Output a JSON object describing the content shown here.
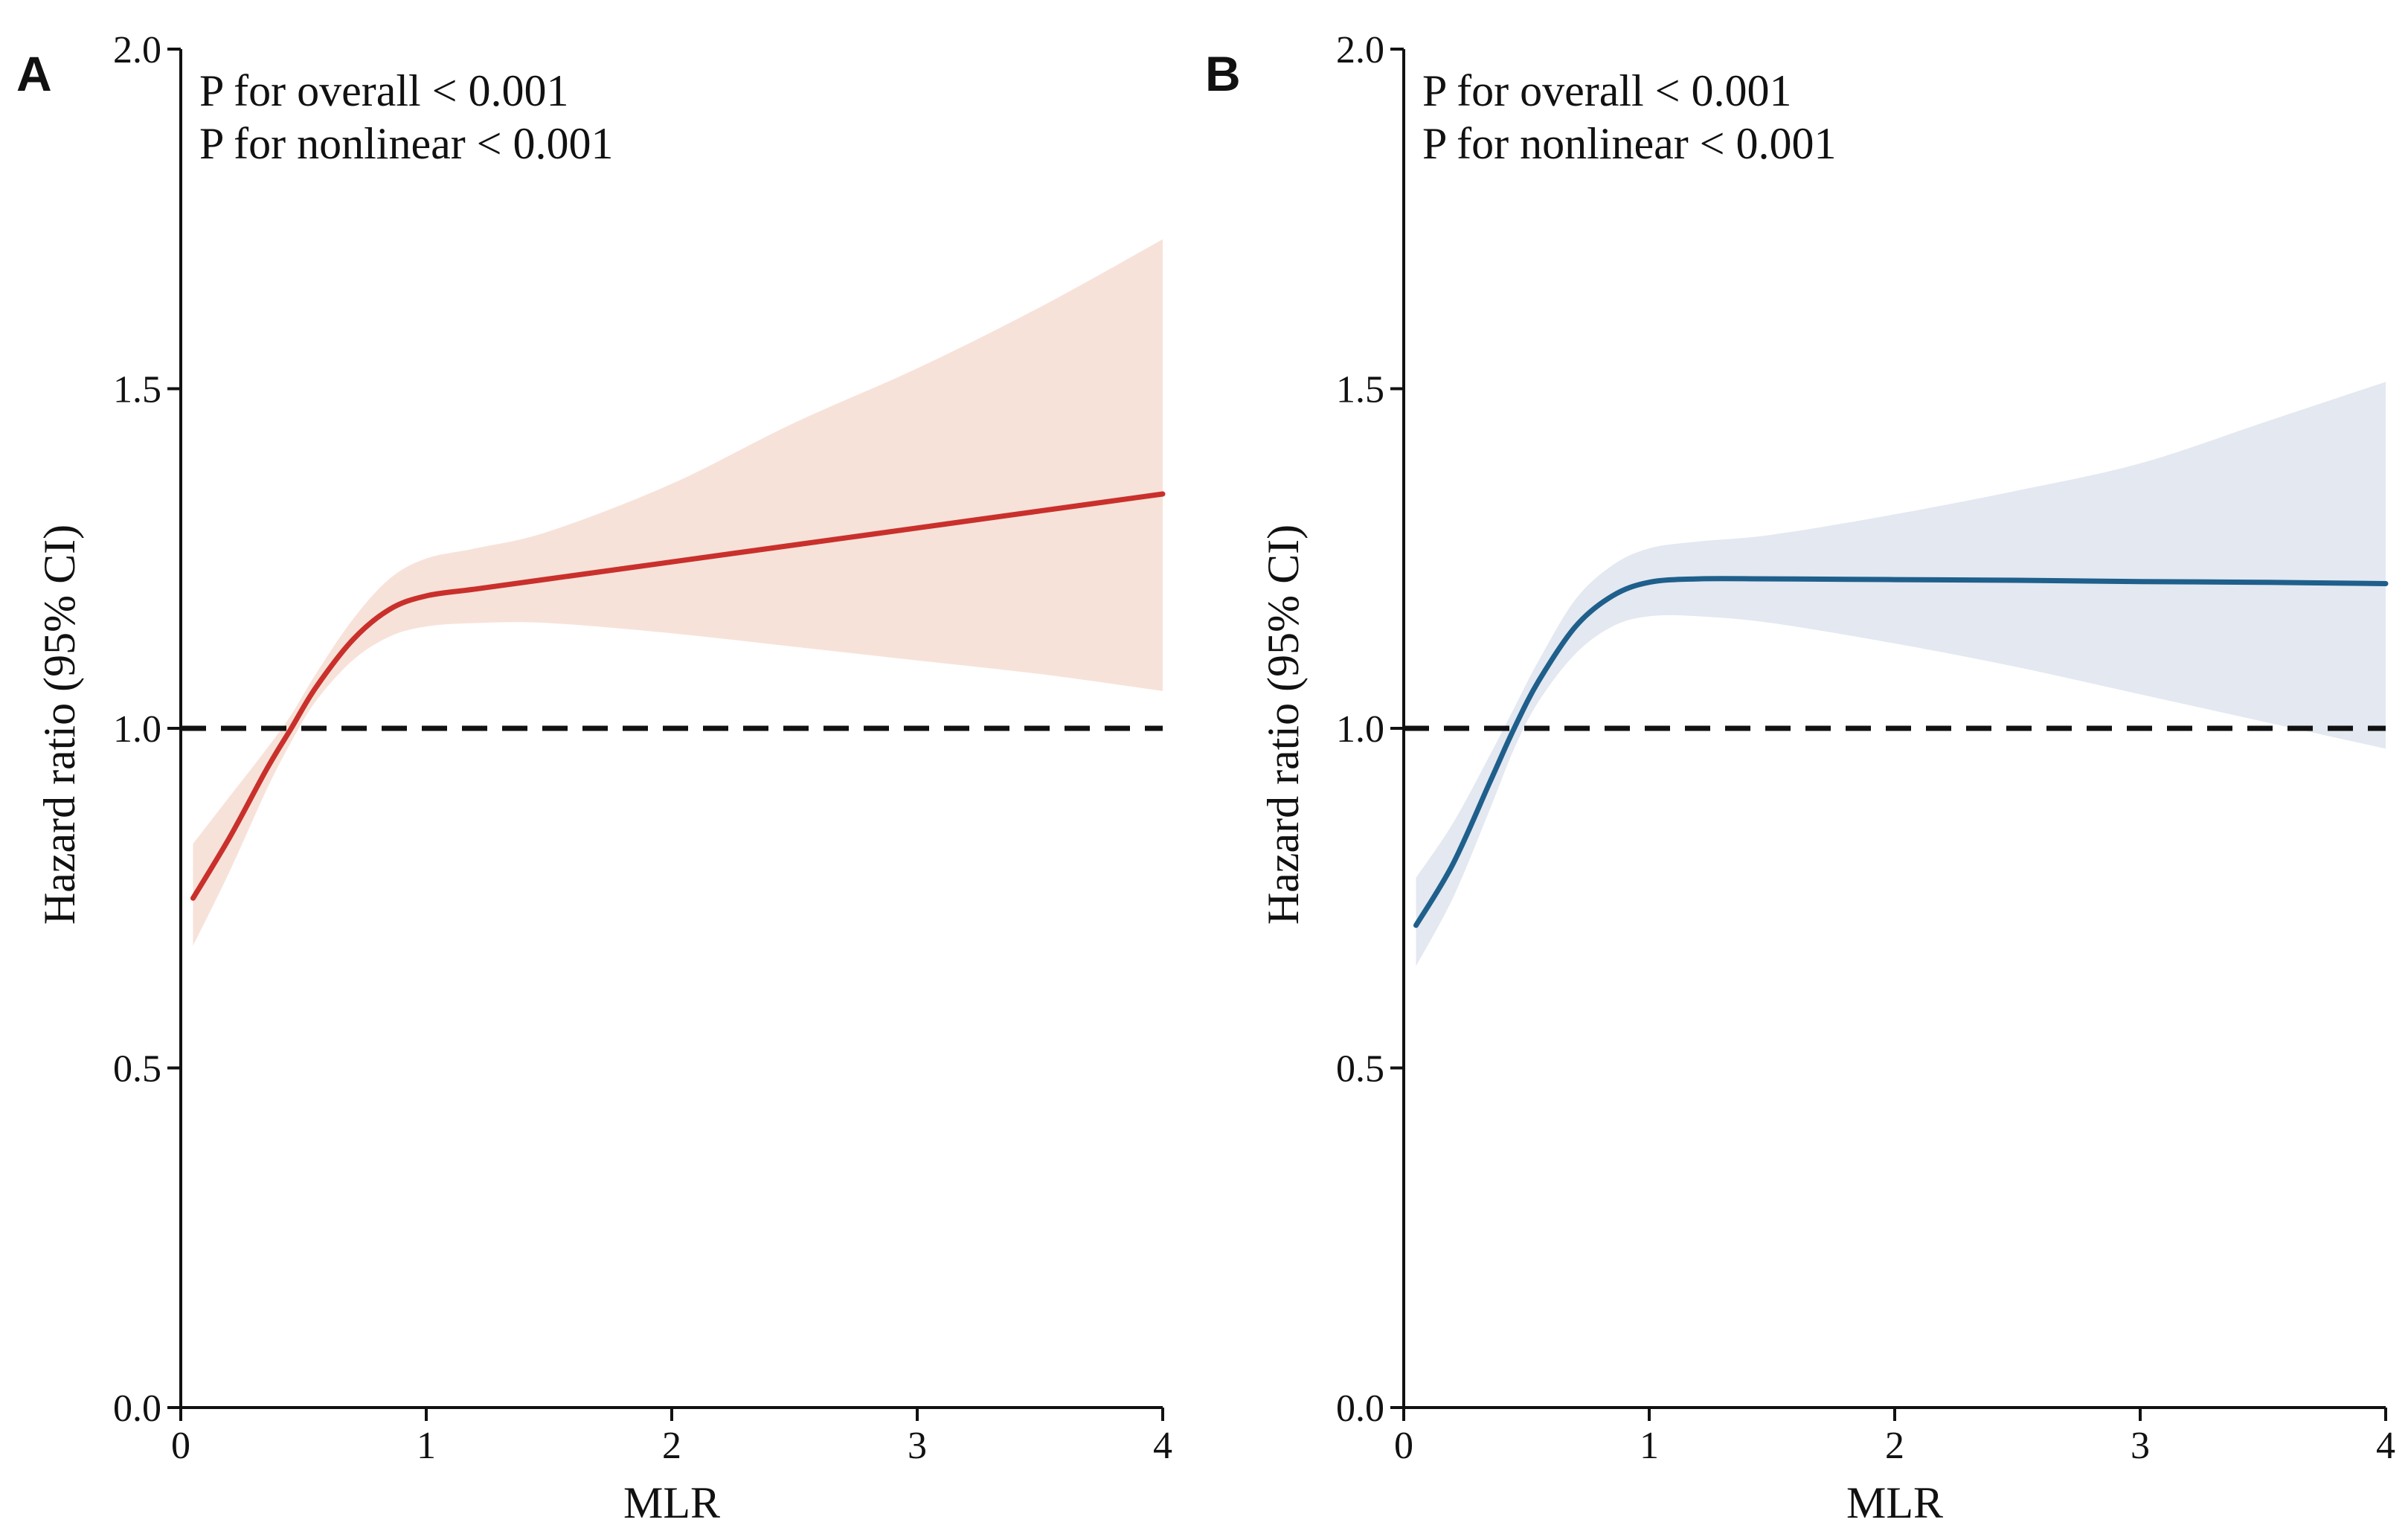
{
  "chart_data": [
    {
      "type": "line",
      "panel_label": "A",
      "annotations": [
        "P for overall < 0.001",
        "P for nonlinear < 0.001"
      ],
      "xlabel": "MLR",
      "ylabel": "Hazard ratio (95% CI)",
      "xlim": [
        0,
        4
      ],
      "ylim": [
        0,
        2
      ],
      "xticks": [
        "0",
        "1",
        "2",
        "3",
        "4"
      ],
      "yticks": [
        "0.0",
        "0.5",
        "1.0",
        "1.5",
        "2.0"
      ],
      "reference_line": 1.0,
      "line_color": "#c9302c",
      "band_color": "#f7e2d9",
      "series": [
        {
          "name": "Hazard ratio",
          "x": [
            0.05,
            0.2,
            0.35,
            0.45,
            0.55,
            0.7,
            0.85,
            1.0,
            1.2,
            1.5,
            2.0,
            2.5,
            3.0,
            3.5,
            4.0
          ],
          "y": [
            0.75,
            0.84,
            0.94,
            1.0,
            1.06,
            1.13,
            1.175,
            1.195,
            1.205,
            1.22,
            1.245,
            1.27,
            1.295,
            1.32,
            1.345
          ],
          "lower": [
            0.68,
            0.79,
            0.91,
            0.98,
            1.04,
            1.1,
            1.135,
            1.15,
            1.155,
            1.155,
            1.14,
            1.12,
            1.1,
            1.08,
            1.055
          ],
          "upper": [
            0.83,
            0.9,
            0.97,
            1.02,
            1.08,
            1.16,
            1.22,
            1.25,
            1.265,
            1.29,
            1.36,
            1.45,
            1.53,
            1.62,
            1.72
          ]
        }
      ]
    },
    {
      "type": "line",
      "panel_label": "B",
      "annotations": [
        "P for overall < 0.001",
        "P for nonlinear < 0.001"
      ],
      "xlabel": "MLR",
      "ylabel": "Hazard ratio (95% CI)",
      "xlim": [
        0,
        4
      ],
      "ylim": [
        0,
        2
      ],
      "xticks": [
        "0",
        "1",
        "2",
        "3",
        "4"
      ],
      "yticks": [
        "0.0",
        "0.5",
        "1.0",
        "1.5",
        "2.0"
      ],
      "reference_line": 1.0,
      "line_color": "#1f5f8b",
      "band_color": "#e3e8f1",
      "series": [
        {
          "name": "Hazard ratio",
          "x": [
            0.05,
            0.2,
            0.35,
            0.45,
            0.55,
            0.7,
            0.85,
            1.0,
            1.2,
            1.5,
            2.0,
            2.5,
            3.0,
            3.5,
            4.0
          ],
          "y": [
            0.71,
            0.8,
            0.92,
            1.0,
            1.07,
            1.15,
            1.195,
            1.215,
            1.22,
            1.22,
            1.219,
            1.218,
            1.216,
            1.215,
            1.213
          ],
          "lower": [
            0.65,
            0.75,
            0.88,
            0.97,
            1.04,
            1.11,
            1.15,
            1.165,
            1.165,
            1.155,
            1.125,
            1.09,
            1.05,
            1.01,
            0.97
          ],
          "upper": [
            0.78,
            0.86,
            0.96,
            1.03,
            1.1,
            1.19,
            1.24,
            1.265,
            1.275,
            1.285,
            1.315,
            1.35,
            1.39,
            1.45,
            1.51
          ]
        }
      ]
    }
  ]
}
